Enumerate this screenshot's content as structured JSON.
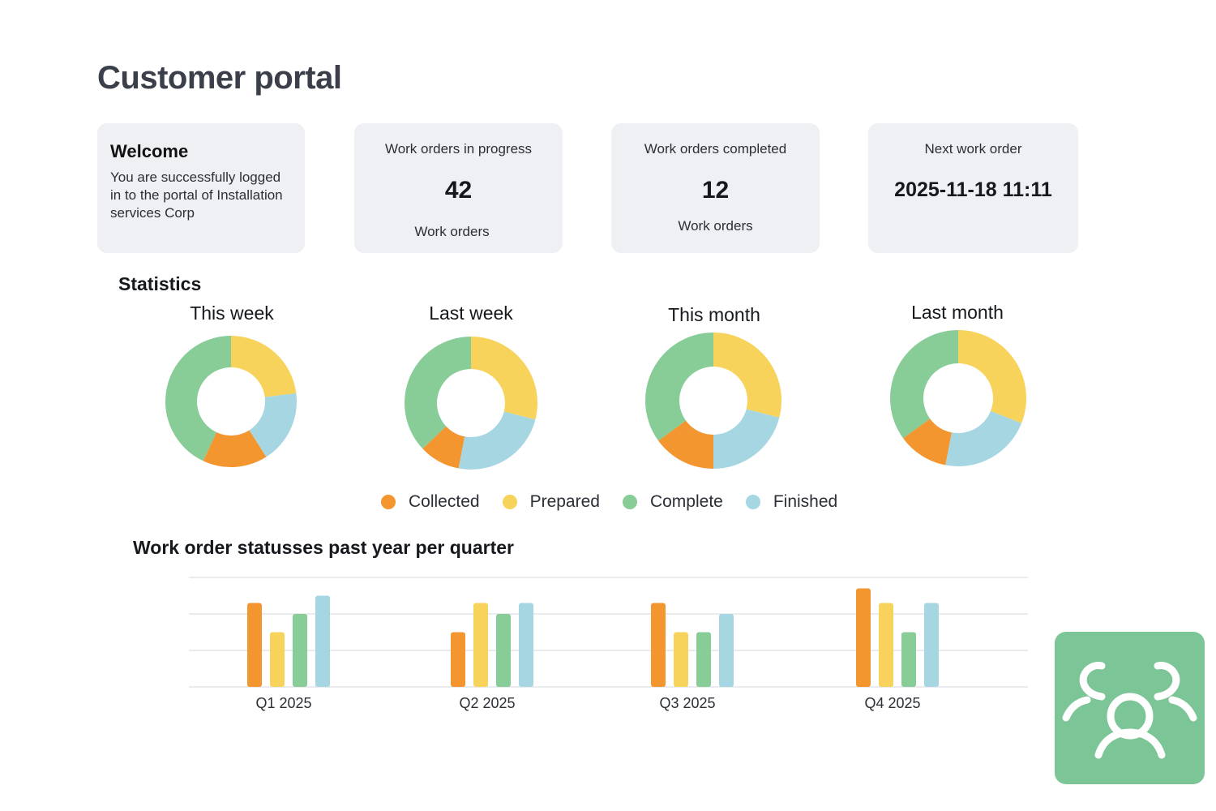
{
  "page": {
    "title": "Customer portal"
  },
  "cards": {
    "welcome": {
      "heading": "Welcome",
      "text": "You are successfully logged in to the portal of Installation services Corp"
    },
    "in_progress": {
      "label": "Work orders in progress",
      "value": "42",
      "unit": "Work orders"
    },
    "completed": {
      "label": "Work orders completed",
      "value": "12",
      "unit": "Work orders"
    },
    "next": {
      "label": "Next work order",
      "value": "2025-11-18 11:11"
    }
  },
  "statistics": {
    "title": "Statistics"
  },
  "colors": {
    "collected": "#f3962f",
    "prepared": "#f7d35c",
    "complete": "#88cc98",
    "finished": "#a7d6e3",
    "badge": "#7cc596"
  },
  "legend": [
    {
      "label": "Collected",
      "color": "#f3962f"
    },
    {
      "label": "Prepared",
      "color": "#f7d35c"
    },
    {
      "label": "Complete",
      "color": "#88cc98"
    },
    {
      "label": "Finished",
      "color": "#a7d6e3"
    }
  ],
  "quarter_chart": {
    "title": "Work order statusses past year per quarter"
  },
  "chart_data": [
    {
      "type": "pie",
      "title": "This week",
      "categories": [
        "Prepared",
        "Finished",
        "Collected",
        "Complete"
      ],
      "values": [
        23,
        18,
        16,
        43
      ]
    },
    {
      "type": "pie",
      "title": "Last week",
      "categories": [
        "Prepared",
        "Finished",
        "Collected",
        "Complete"
      ],
      "values": [
        29,
        24,
        10,
        37
      ]
    },
    {
      "type": "pie",
      "title": "This month",
      "categories": [
        "Prepared",
        "Finished",
        "Collected",
        "Complete"
      ],
      "values": [
        29,
        21,
        15,
        35
      ]
    },
    {
      "type": "pie",
      "title": "Last month",
      "categories": [
        "Prepared",
        "Finished",
        "Collected",
        "Complete"
      ],
      "values": [
        31,
        22,
        12,
        35
      ]
    },
    {
      "type": "bar",
      "title": "Work order statusses past year per quarter",
      "categories": [
        "Q1 2025",
        "Q2 2025",
        "Q3 2025",
        "Q4 2025"
      ],
      "series": [
        {
          "name": "Collected",
          "values": [
            23,
            15,
            23,
            27
          ]
        },
        {
          "name": "Prepared",
          "values": [
            15,
            23,
            15,
            23
          ]
        },
        {
          "name": "Complete",
          "values": [
            20,
            20,
            15,
            15
          ]
        },
        {
          "name": "Finished",
          "values": [
            25,
            23,
            20,
            23
          ]
        }
      ],
      "ylim": [
        0,
        30
      ],
      "grid": true
    }
  ]
}
